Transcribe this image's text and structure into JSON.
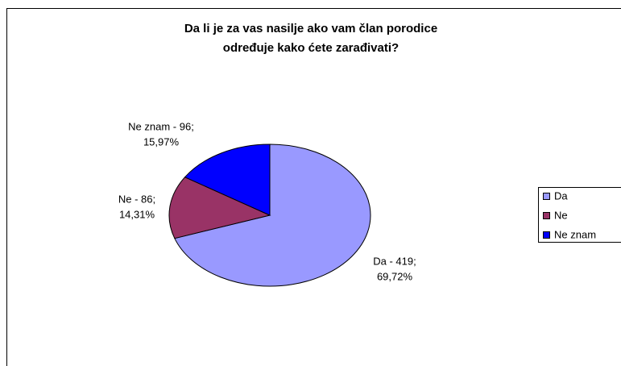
{
  "chart_data": {
    "type": "pie",
    "title": [
      "Da li je za vas nasilje ako vam član porodice",
      "određuje kako ćete zarađivati?"
    ],
    "categories": [
      "Da",
      "Ne",
      "Ne znam"
    ],
    "values": [
      419,
      86,
      96
    ],
    "value_labels": [
      [
        "Da -  419;",
        "69,72%"
      ],
      [
        "Ne -  86;",
        "14,31%"
      ],
      [
        "Ne znam -  96;",
        "15,97%"
      ]
    ],
    "colors": [
      "#9999ff",
      "#993366",
      "#0000ff"
    ],
    "legend": "right"
  }
}
